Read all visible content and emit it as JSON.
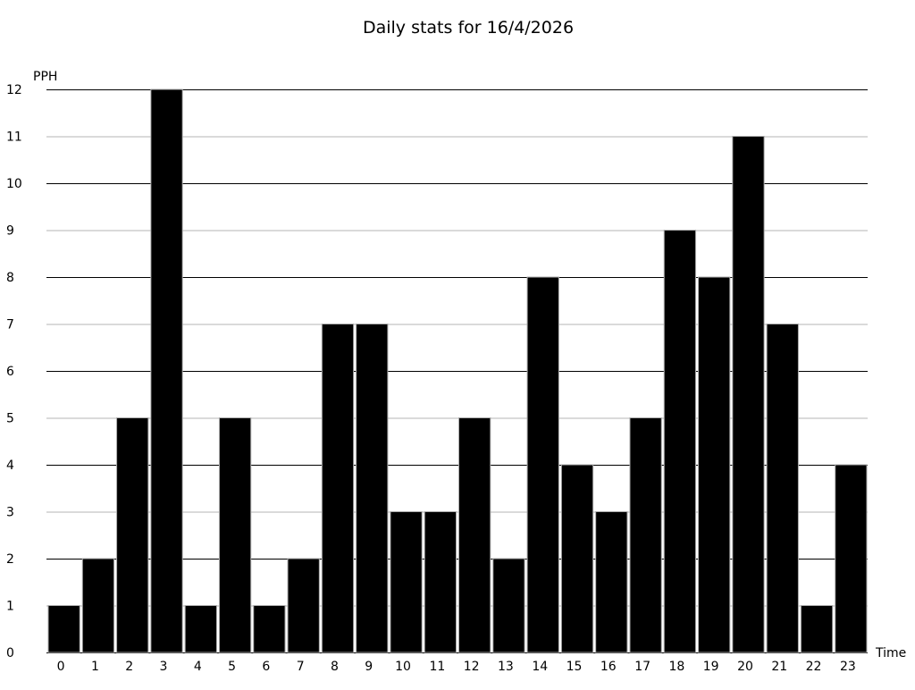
{
  "chart_data": {
    "type": "bar",
    "title": "Daily stats for 16/4/2026",
    "xlabel": "Time",
    "ylabel": "PPH",
    "categories": [
      "0",
      "1",
      "2",
      "3",
      "4",
      "5",
      "6",
      "7",
      "8",
      "9",
      "10",
      "11",
      "12",
      "13",
      "14",
      "15",
      "16",
      "17",
      "18",
      "19",
      "20",
      "21",
      "22",
      "23"
    ],
    "values": [
      1,
      2,
      5,
      12,
      1,
      5,
      1,
      2,
      7,
      7,
      3,
      3,
      5,
      2,
      8,
      4,
      3,
      5,
      9,
      8,
      11,
      7,
      1,
      4
    ],
    "ylim": [
      0,
      12
    ],
    "yticks": [
      0,
      1,
      2,
      3,
      4,
      5,
      6,
      7,
      8,
      9,
      10,
      11,
      12
    ],
    "grid": true,
    "colors": {
      "bar": "#000000",
      "bar_edge": "#aaaaaa",
      "grid_major": "#000000",
      "grid_minor": "#b4b4b4"
    }
  }
}
